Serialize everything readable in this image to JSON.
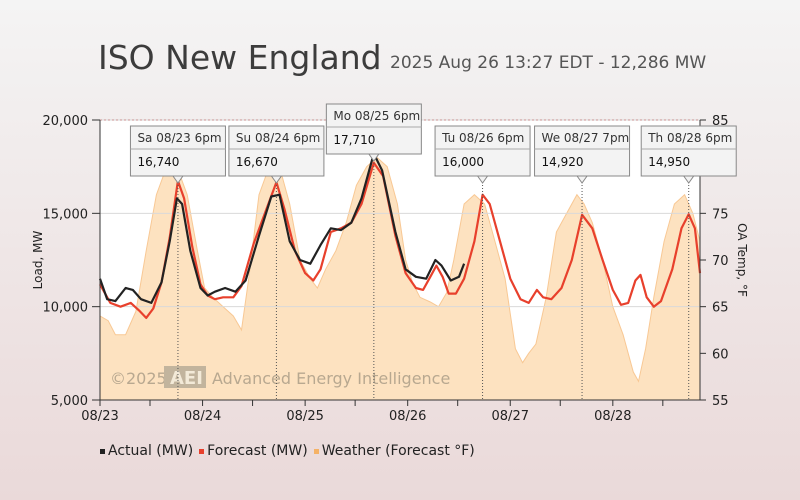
{
  "header": {
    "title": "ISO New England",
    "subtitle": "2025 Aug 26 13:27 EDT - 12,286 MW"
  },
  "watermark": {
    "year": "©2025",
    "logo": "AEI",
    "text": "Advanced Energy Intelligence"
  },
  "legend": [
    {
      "label": "Actual (MW)",
      "color": "#222222"
    },
    {
      "label": "Forecast (MW)",
      "color": "#e8402c"
    },
    {
      "label": "Weather (Forecast °F)",
      "color": "#f5b266"
    }
  ],
  "chart_data": {
    "type": "line",
    "xlabel": "",
    "ylabel": "Load, MW",
    "y2label": "OA Temp, °F",
    "x_ticks": [
      "08/23",
      "08/24",
      "08/25",
      "08/26",
      "08/27",
      "08/28"
    ],
    "ylim": [
      5000,
      20000
    ],
    "y_ticks": [
      "5,000",
      "10,000",
      "15,000",
      "20,000"
    ],
    "y2lim": [
      55,
      85
    ],
    "y2_ticks": [
      "55",
      "60",
      "65",
      "70",
      "75",
      "80",
      "85"
    ],
    "xlim_days": [
      0,
      5.85
    ],
    "series": [
      {
        "name": "Actual (MW)",
        "color": "#222222",
        "points": [
          [
            0,
            11500
          ],
          [
            0.07,
            10400
          ],
          [
            0.15,
            10300
          ],
          [
            0.25,
            11000
          ],
          [
            0.32,
            10900
          ],
          [
            0.4,
            10400
          ],
          [
            0.5,
            10200
          ],
          [
            0.6,
            11300
          ],
          [
            0.68,
            13500
          ],
          [
            0.75,
            15800
          ],
          [
            0.8,
            15500
          ],
          [
            0.88,
            13000
          ],
          [
            0.98,
            11000
          ],
          [
            1.05,
            10600
          ],
          [
            1.12,
            10800
          ],
          [
            1.22,
            11000
          ],
          [
            1.32,
            10800
          ],
          [
            1.42,
            11400
          ],
          [
            1.55,
            13800
          ],
          [
            1.67,
            15900
          ],
          [
            1.75,
            16000
          ],
          [
            1.85,
            13500
          ],
          [
            1.95,
            12500
          ],
          [
            2.05,
            12300
          ],
          [
            2.15,
            13300
          ],
          [
            2.25,
            14200
          ],
          [
            2.35,
            14100
          ],
          [
            2.45,
            14500
          ],
          [
            2.55,
            15800
          ],
          [
            2.67,
            18200
          ],
          [
            2.75,
            17300
          ],
          [
            2.88,
            14000
          ],
          [
            2.98,
            12000
          ],
          [
            3.08,
            11600
          ],
          [
            3.18,
            11500
          ],
          [
            3.27,
            12500
          ],
          [
            3.33,
            12200
          ],
          [
            3.42,
            11400
          ],
          [
            3.5,
            11600
          ],
          [
            3.55,
            12300
          ]
        ]
      },
      {
        "name": "Forecast (MW)",
        "color": "#e8402c",
        "points": [
          [
            0,
            11200
          ],
          [
            0.1,
            10200
          ],
          [
            0.2,
            10000
          ],
          [
            0.3,
            10200
          ],
          [
            0.38,
            9800
          ],
          [
            0.45,
            9400
          ],
          [
            0.52,
            9900
          ],
          [
            0.6,
            11300
          ],
          [
            0.68,
            13700
          ],
          [
            0.76,
            16740
          ],
          [
            0.82,
            15800
          ],
          [
            0.9,
            13200
          ],
          [
            0.98,
            11200
          ],
          [
            1.05,
            10600
          ],
          [
            1.12,
            10400
          ],
          [
            1.2,
            10500
          ],
          [
            1.3,
            10500
          ],
          [
            1.38,
            11100
          ],
          [
            1.5,
            13400
          ],
          [
            1.72,
            16670
          ],
          [
            1.8,
            15200
          ],
          [
            1.9,
            13000
          ],
          [
            2.0,
            11800
          ],
          [
            2.08,
            11400
          ],
          [
            2.15,
            12000
          ],
          [
            2.25,
            14000
          ],
          [
            2.35,
            14200
          ],
          [
            2.45,
            14500
          ],
          [
            2.55,
            15500
          ],
          [
            2.67,
            17710
          ],
          [
            2.76,
            17000
          ],
          [
            2.88,
            13800
          ],
          [
            2.98,
            11800
          ],
          [
            3.08,
            11000
          ],
          [
            3.15,
            10900
          ],
          [
            3.22,
            11600
          ],
          [
            3.28,
            12200
          ],
          [
            3.34,
            11600
          ],
          [
            3.4,
            10700
          ],
          [
            3.47,
            10700
          ],
          [
            3.55,
            11500
          ],
          [
            3.65,
            13500
          ],
          [
            3.73,
            16000
          ],
          [
            3.8,
            15500
          ],
          [
            3.9,
            13500
          ],
          [
            4.0,
            11500
          ],
          [
            4.1,
            10400
          ],
          [
            4.18,
            10200
          ],
          [
            4.26,
            10900
          ],
          [
            4.32,
            10500
          ],
          [
            4.4,
            10400
          ],
          [
            4.5,
            11000
          ],
          [
            4.6,
            12500
          ],
          [
            4.7,
            14920
          ],
          [
            4.8,
            14200
          ],
          [
            4.9,
            12500
          ],
          [
            5.0,
            10900
          ],
          [
            5.08,
            10100
          ],
          [
            5.15,
            10200
          ],
          [
            5.22,
            11400
          ],
          [
            5.27,
            11700
          ],
          [
            5.33,
            10500
          ],
          [
            5.4,
            10000
          ],
          [
            5.47,
            10300
          ],
          [
            5.58,
            12000
          ],
          [
            5.67,
            14200
          ],
          [
            5.74,
            14950
          ],
          [
            5.8,
            14200
          ],
          [
            5.85,
            11800
          ]
        ]
      },
      {
        "name": "Weather (Forecast °F)",
        "color": "#f5b266",
        "points": [
          [
            0,
            64
          ],
          [
            0.08,
            63.5
          ],
          [
            0.15,
            62
          ],
          [
            0.25,
            62
          ],
          [
            0.35,
            64.5
          ],
          [
            0.45,
            71
          ],
          [
            0.55,
            77
          ],
          [
            0.65,
            80
          ],
          [
            0.75,
            80
          ],
          [
            0.85,
            77
          ],
          [
            0.95,
            71
          ],
          [
            1.02,
            67
          ],
          [
            1.1,
            66
          ],
          [
            1.2,
            65
          ],
          [
            1.3,
            64
          ],
          [
            1.38,
            62.5
          ],
          [
            1.45,
            68
          ],
          [
            1.55,
            77
          ],
          [
            1.65,
            80
          ],
          [
            1.75,
            80
          ],
          [
            1.85,
            76
          ],
          [
            1.95,
            70
          ],
          [
            2.05,
            68
          ],
          [
            2.12,
            67
          ],
          [
            2.2,
            69
          ],
          [
            2.3,
            71
          ],
          [
            2.4,
            74
          ],
          [
            2.5,
            78
          ],
          [
            2.6,
            80
          ],
          [
            2.7,
            81
          ],
          [
            2.8,
            80
          ],
          [
            2.9,
            76
          ],
          [
            2.98,
            70
          ],
          [
            3.05,
            67.5
          ],
          [
            3.12,
            66
          ],
          [
            3.22,
            65.5
          ],
          [
            3.3,
            65
          ],
          [
            3.38,
            66.5
          ],
          [
            3.45,
            70
          ],
          [
            3.55,
            76
          ],
          [
            3.65,
            77
          ],
          [
            3.75,
            76
          ],
          [
            3.85,
            72
          ],
          [
            3.95,
            68
          ],
          [
            4.05,
            60.5
          ],
          [
            4.12,
            59
          ],
          [
            4.18,
            60
          ],
          [
            4.25,
            61
          ],
          [
            4.35,
            66
          ],
          [
            4.45,
            73
          ],
          [
            4.55,
            75
          ],
          [
            4.65,
            77
          ],
          [
            4.72,
            76
          ],
          [
            4.8,
            74
          ],
          [
            4.9,
            70
          ],
          [
            5.0,
            65
          ],
          [
            5.1,
            62
          ],
          [
            5.2,
            58
          ],
          [
            5.25,
            57
          ],
          [
            5.32,
            60.5
          ],
          [
            5.4,
            66
          ],
          [
            5.5,
            72
          ],
          [
            5.6,
            76
          ],
          [
            5.7,
            77
          ],
          [
            5.78,
            75
          ],
          [
            5.85,
            72
          ]
        ]
      }
    ],
    "annotations": [
      {
        "date": "Sa 08/23 6pm",
        "value": "16,740",
        "x": 0.76,
        "y": 16740,
        "highlight": false
      },
      {
        "date": "Su 08/24 6pm",
        "value": "16,670",
        "x": 1.72,
        "y": 16670,
        "highlight": false
      },
      {
        "date": "Mo 08/25 6pm",
        "value": "17,710",
        "x": 2.67,
        "y": 17710,
        "highlight": false
      },
      {
        "date": "Tu 08/26 6pm",
        "value": "16,000",
        "x": 3.73,
        "y": 16000,
        "highlight": true
      },
      {
        "date": "We 08/27 7pm",
        "value": "14,920",
        "x": 4.7,
        "y": 14920,
        "highlight": false
      },
      {
        "date": "Th 08/28 6pm",
        "value": "14,950",
        "x": 5.74,
        "y": 14950,
        "highlight": false
      }
    ]
  }
}
